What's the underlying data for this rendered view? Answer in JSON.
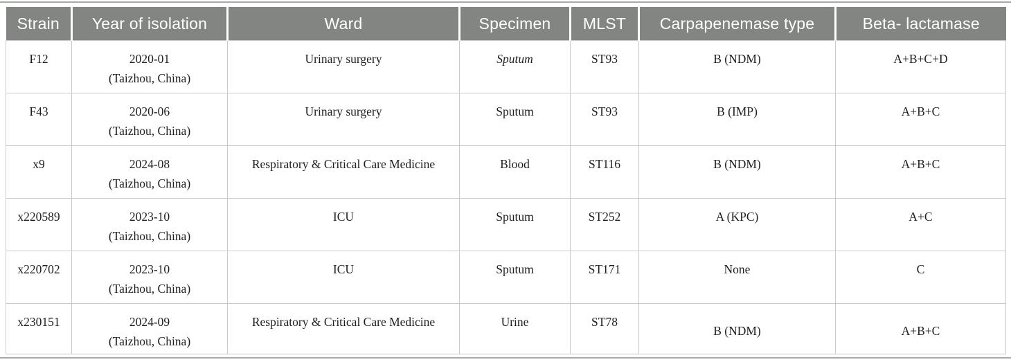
{
  "colors": {
    "header_bg": "#838583",
    "header_text": "#ffffff",
    "cell_border": "#c9c9c9",
    "horizontal_rule": "#a9aba9",
    "body_text": "#1f1f1f"
  },
  "table": {
    "columns": [
      {
        "key": "strain",
        "label": "Strain"
      },
      {
        "key": "year",
        "label": "Year of isolation"
      },
      {
        "key": "ward",
        "label": "Ward"
      },
      {
        "key": "specimen",
        "label": "Specimen"
      },
      {
        "key": "mlst",
        "label": "MLST"
      },
      {
        "key": "carbapenemase_type",
        "label": "Carpapenemase type"
      },
      {
        "key": "beta_lactamase",
        "label": "Beta- lactamase"
      }
    ],
    "rows": [
      {
        "strain": "F12",
        "year_date": "2020-01",
        "year_location": "(Taizhou, China)",
        "ward": "Urinary surgery",
        "specimen": "Sputum",
        "specimen_italic": true,
        "mlst": "ST93",
        "carbapenemase_type": "B (NDM)",
        "beta_lactamase": "A+B+C+D"
      },
      {
        "strain": "F43",
        "year_date": "2020-06",
        "year_location": "(Taizhou, China)",
        "ward": "Urinary surgery",
        "specimen": "Sputum",
        "specimen_italic": false,
        "mlst": "ST93",
        "carbapenemase_type": "B (IMP)",
        "beta_lactamase": "A+B+C"
      },
      {
        "strain": "x9",
        "year_date": "2024-08",
        "year_location": "(Taizhou, China)",
        "ward": "Respiratory & Critical Care Medicine",
        "specimen": "Blood",
        "specimen_italic": false,
        "mlst": "ST116",
        "carbapenemase_type": "B (NDM)",
        "beta_lactamase": "A+B+C"
      },
      {
        "strain": "x220589",
        "year_date": "2023-10",
        "year_location": "(Taizhou, China)",
        "ward": "ICU",
        "specimen": "Sputum",
        "specimen_italic": false,
        "mlst": "ST252",
        "carbapenemase_type": "A (KPC)",
        "beta_lactamase": "A+C"
      },
      {
        "strain": "x220702",
        "year_date": "2023-10",
        "year_location": "(Taizhou, China)",
        "ward": "ICU",
        "specimen": "Sputum",
        "specimen_italic": false,
        "mlst": "ST171",
        "carbapenemase_type": "None",
        "beta_lactamase": "C"
      },
      {
        "strain": "x230151",
        "year_date": "2024-09",
        "year_location": "(Taizhou, China)",
        "ward": "Respiratory & Critical Care Medicine",
        "specimen": "Urine",
        "specimen_italic": false,
        "mlst": "ST78",
        "carbapenemase_type": "B (NDM)",
        "beta_lactamase": "A+B+C"
      }
    ]
  }
}
